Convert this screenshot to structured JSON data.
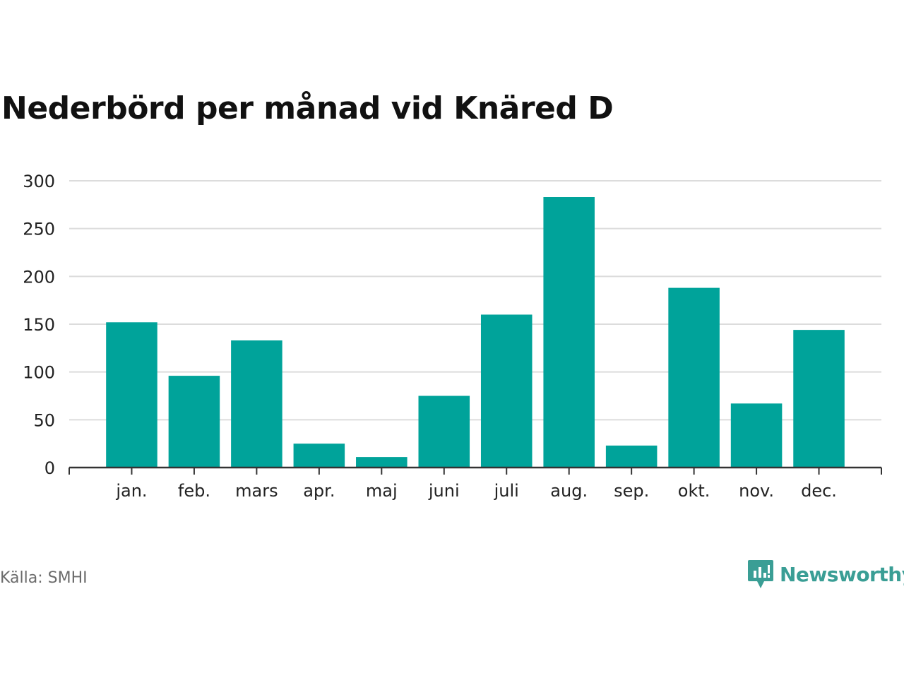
{
  "header": {
    "title": "Nederbörd per månad vid Knäred D"
  },
  "footer": {
    "source": "Källa: SMHI",
    "brand": "Newsworthy",
    "brand_icon": "newsworthy-logo-icon"
  },
  "colors": {
    "bar": "#00a39a",
    "grid": "#dcdcdc",
    "axis": "#333333",
    "brand": "#3a9e95"
  },
  "chart_data": {
    "type": "bar",
    "title": "Nederbörd per månad vid Knäred D",
    "xlabel": "",
    "ylabel": "",
    "categories": [
      "jan.",
      "feb.",
      "mars",
      "apr.",
      "maj",
      "juni",
      "juli",
      "aug.",
      "sep.",
      "okt.",
      "nov.",
      "dec."
    ],
    "values": [
      152,
      96,
      133,
      25,
      11,
      75,
      160,
      283,
      23,
      188,
      67,
      144
    ],
    "ylim": [
      0,
      300
    ],
    "yticks": [
      0,
      50,
      100,
      150,
      200,
      250,
      300
    ],
    "grid": true,
    "legend": "none"
  }
}
